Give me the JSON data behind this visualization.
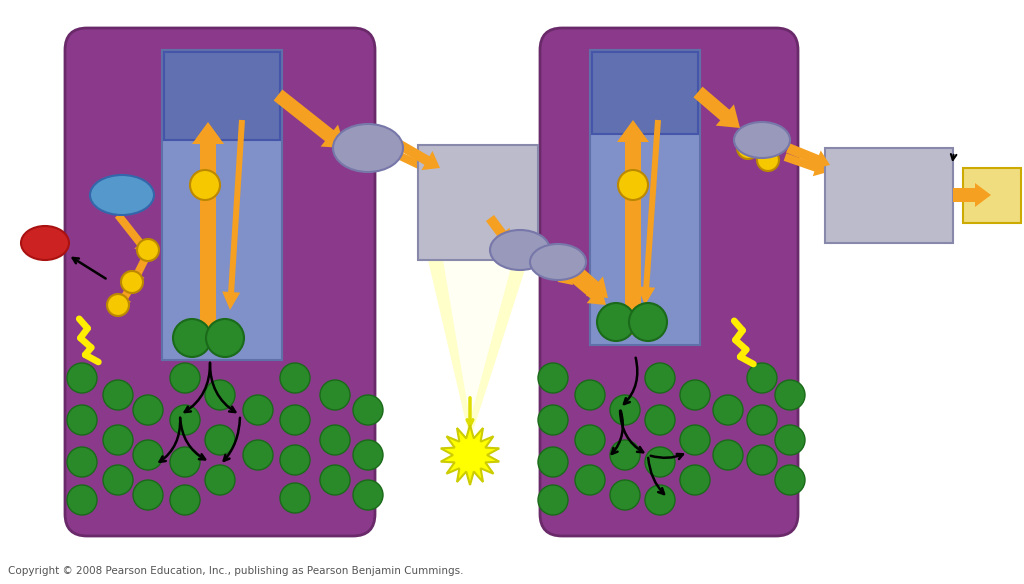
{
  "bg_color": "#ffffff",
  "purple": "#8B3A8B",
  "blue_rect": "#8090C8",
  "blue_rect_top": "#6070B0",
  "orange": "#F5A020",
  "yellow_ball": "#F5C800",
  "green_ball": "#2A8A2A",
  "green_ball_dark": "#1A6A1A",
  "blue_oval": "#5599CC",
  "red_oval": "#CC2222",
  "gray_oval": "#9999BB",
  "gray_box": "#BBBBCC",
  "yellow_box": "#F0DD80",
  "yellow_zz": "#FFEE00",
  "copyright": "Copyright © 2008 Pearson Education, Inc., publishing as Pearson Benjamin Cummings."
}
